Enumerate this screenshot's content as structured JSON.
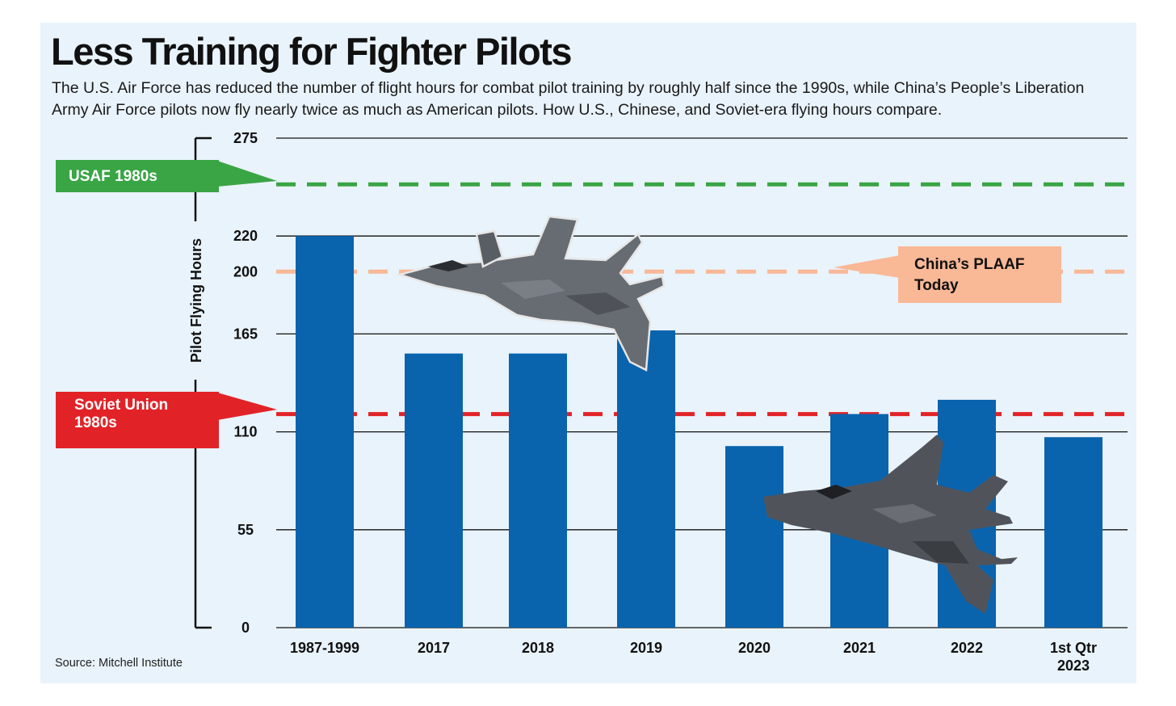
{
  "title": "Less Training for Fighter Pilots",
  "subtitle": "The U.S. Air Force has reduced the number of flight hours for combat pilot training by roughly half since the 1990s, while China’s People’s Liberation Army Air Force pilots now fly nearly twice as much as American pilots. How U.S., Chinese, and Soviet-era flying hours compare.",
  "source": "Source: Mitchell Institute",
  "images": {
    "top_jet": "j20-jet-icon",
    "bottom_jet": "f35-jet-icon"
  },
  "colors": {
    "bar": "#0a63ad",
    "usaf": "#3aa545",
    "plaaf": "#f9b896",
    "soviet": "#e12328",
    "background": "#e9f3fb",
    "gridline": "#111111"
  },
  "chart_data": {
    "type": "bar",
    "ylabel": "Pilot Flying Hours",
    "xlabel": "",
    "ylim": [
      0,
      275
    ],
    "yticks": [
      0,
      55,
      110,
      165,
      200,
      220,
      275
    ],
    "grid": true,
    "categories": [
      [
        "1987-1999"
      ],
      [
        "2017"
      ],
      [
        "2018"
      ],
      [
        "2019"
      ],
      [
        "2020"
      ],
      [
        "2021"
      ],
      [
        "2022"
      ],
      [
        "1st Qtr",
        "2023"
      ]
    ],
    "values": [
      220,
      154,
      154,
      167,
      102,
      120,
      128,
      107
    ],
    "reference_lines": [
      {
        "name": "usaf",
        "label": [
          "USAF 1980s"
        ],
        "value": 249
      },
      {
        "name": "plaaf",
        "label": [
          "China’s PLAAF",
          "Today"
        ],
        "value": 200
      },
      {
        "name": "soviet",
        "label": [
          "Soviet Union",
          "1980s"
        ],
        "value": 120
      }
    ]
  }
}
